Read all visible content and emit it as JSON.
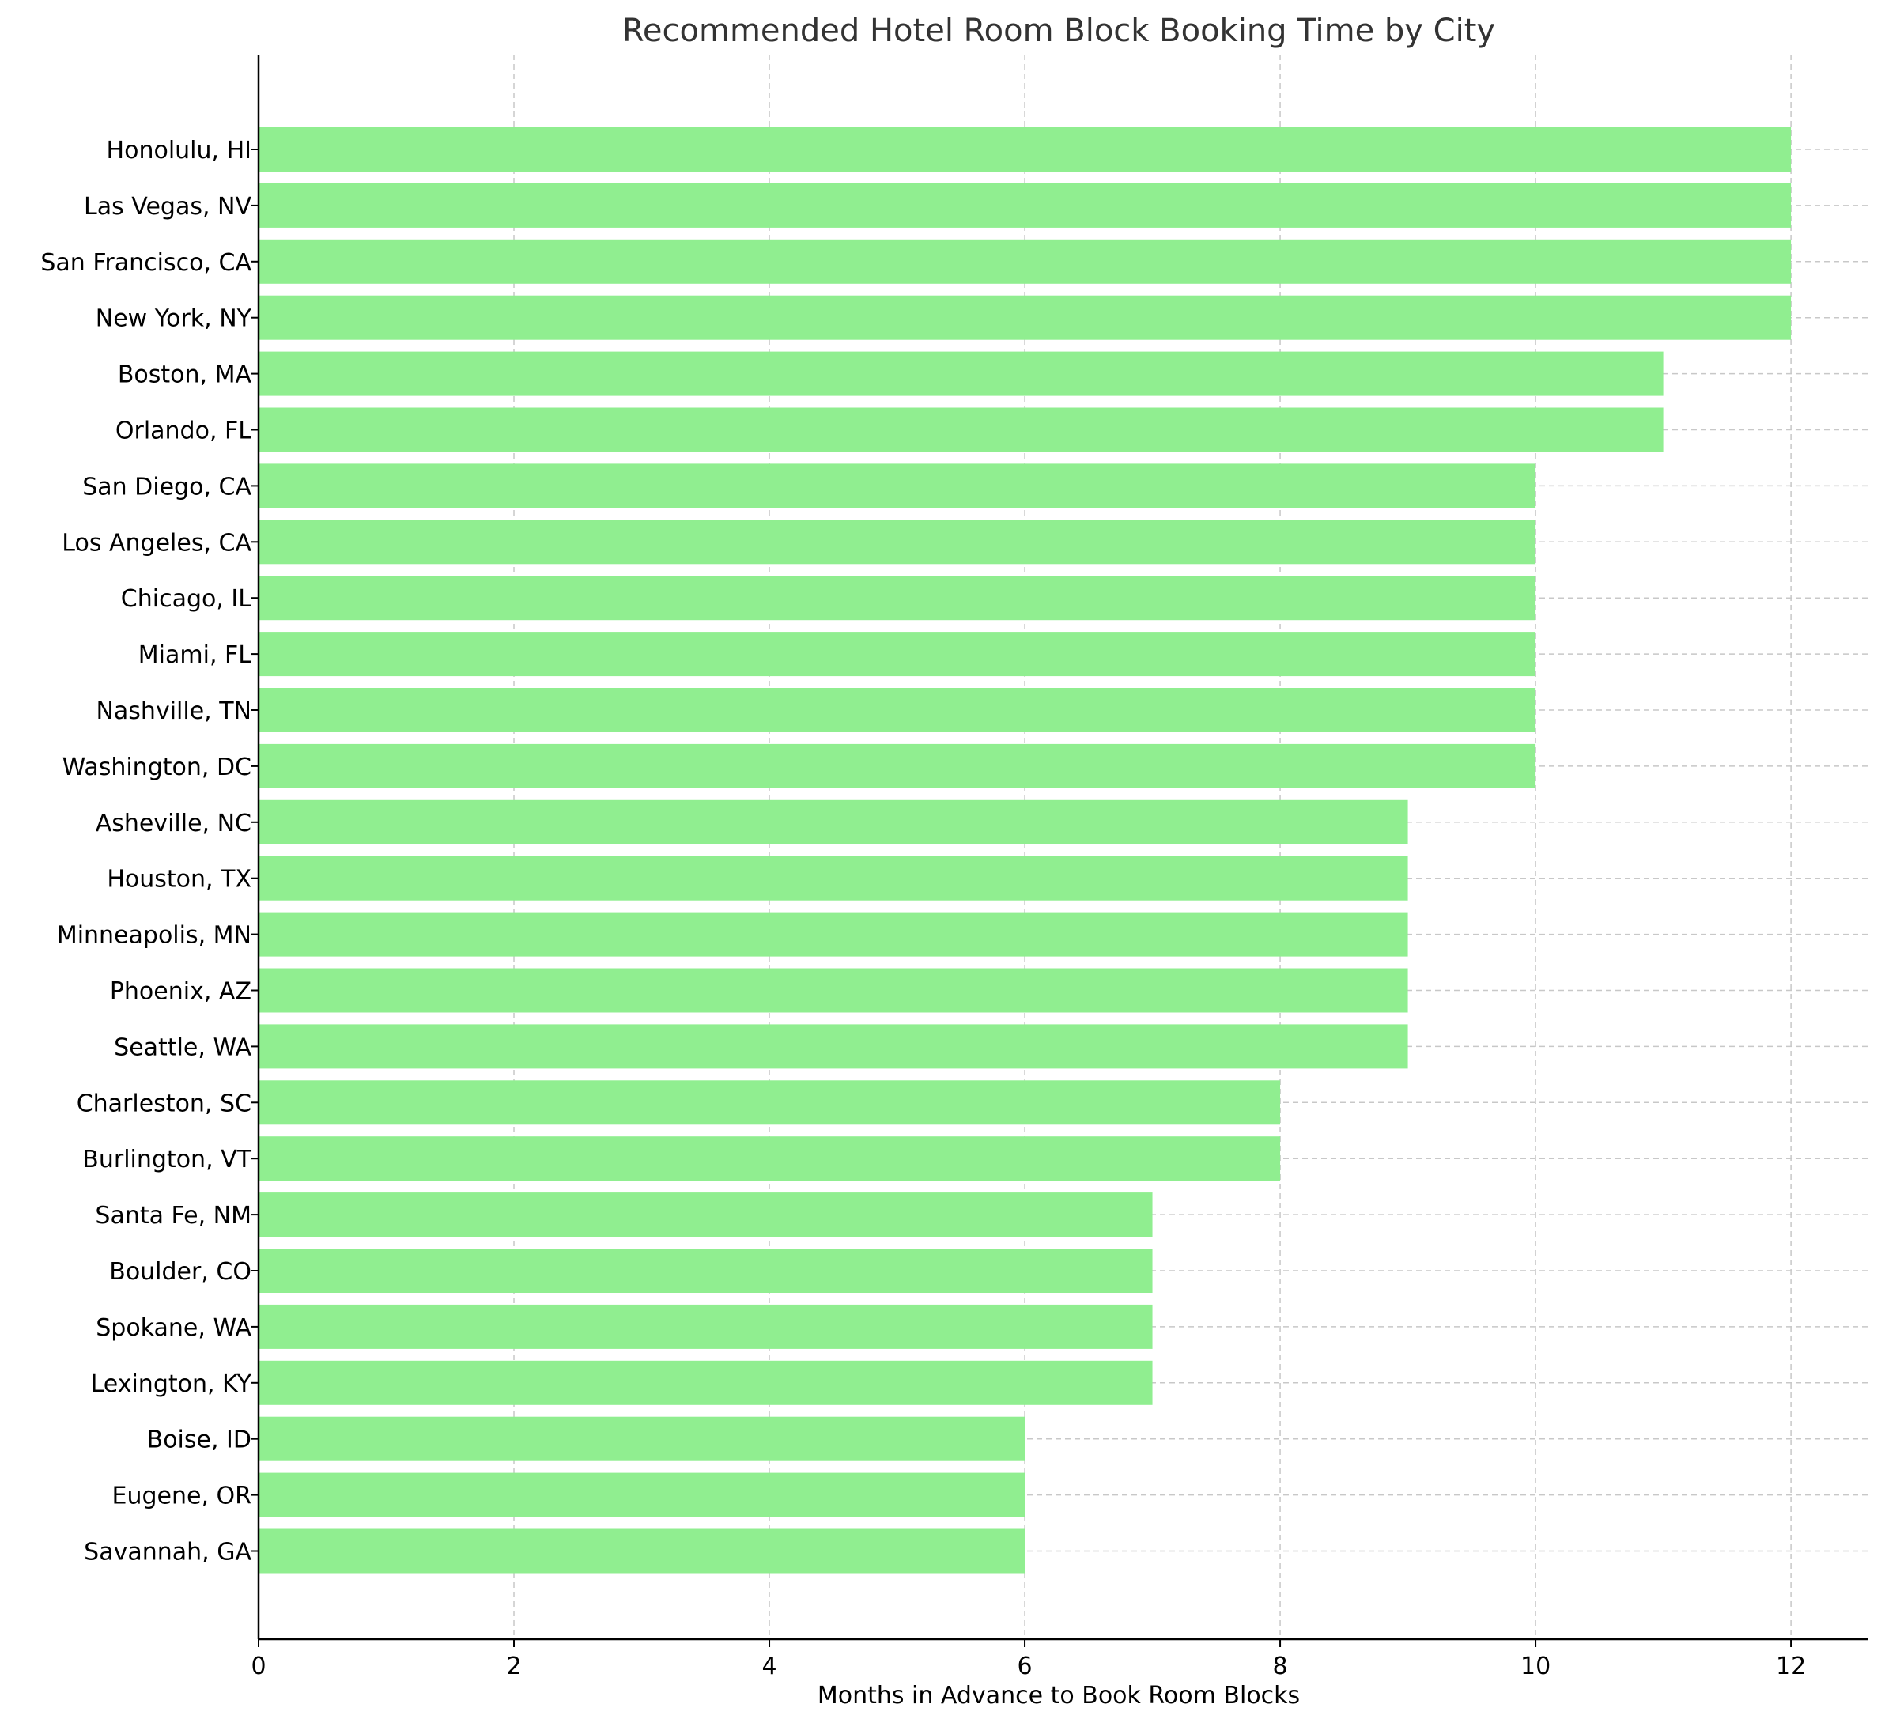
{
  "chart_data": {
    "type": "bar",
    "orientation": "horizontal",
    "title": "Recommended Hotel Room Block Booking Time by City",
    "xlabel": "Months in Advance to Book Room Blocks",
    "ylabel": "",
    "xlim": [
      0,
      12.6
    ],
    "xticks": [
      0,
      2,
      4,
      6,
      8,
      10,
      12
    ],
    "grid": true,
    "bar_color": "#90EE90",
    "categories": [
      "Honolulu, HI",
      "Las Vegas, NV",
      "San Francisco, CA",
      "New York, NY",
      "Boston, MA",
      "Orlando, FL",
      "San Diego, CA",
      "Los Angeles, CA",
      "Chicago, IL",
      "Miami, FL",
      "Nashville, TN",
      "Washington, DC",
      "Asheville, NC",
      "Houston, TX",
      "Minneapolis, MN",
      "Phoenix, AZ",
      "Seattle, WA",
      "Charleston, SC",
      "Burlington, VT",
      "Santa Fe, NM",
      "Boulder, CO",
      "Spokane, WA",
      "Lexington, KY",
      "Boise, ID",
      "Eugene, OR",
      "Savannah, GA"
    ],
    "values": [
      12,
      12,
      12,
      12,
      11,
      11,
      10,
      10,
      10,
      10,
      10,
      10,
      9,
      9,
      9,
      9,
      9,
      8,
      8,
      7,
      7,
      7,
      7,
      6,
      6,
      6
    ]
  }
}
